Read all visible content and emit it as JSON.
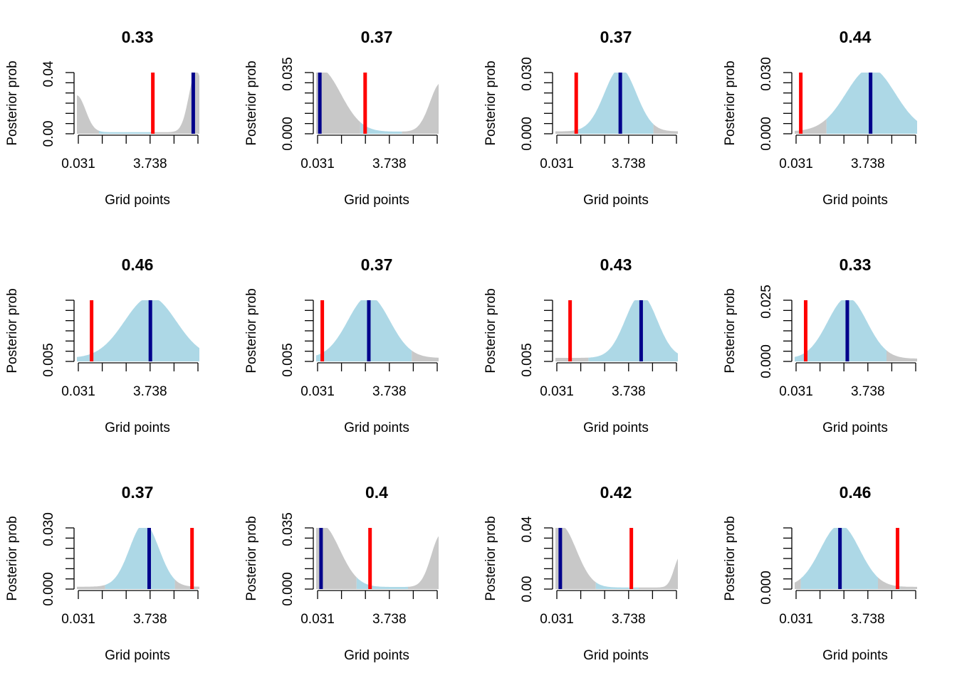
{
  "colors": {
    "density_fill": "#ADD8E6",
    "tail_fill": "#C8C8C8",
    "truth_line": "#FF0000",
    "estimate_line": "#00008B",
    "axis": "#000000"
  },
  "chart_data": [
    {
      "type": "area",
      "title": "0.33",
      "xlabel": "Grid points",
      "ylabel": "Posterior prob",
      "x_tick_labels": [
        "0.031",
        "3.738"
      ],
      "y_tick_labels": [
        "0.00",
        "0.04"
      ],
      "ylim": [
        0,
        0.045
      ],
      "shape": "bimodal",
      "centers": [
        0.0,
        0.975
      ],
      "widths": [
        0.07,
        0.06
      ],
      "amps": [
        0.027,
        0.045
      ],
      "baseline": 0.0012,
      "interval": [
        0.18,
        0.62
      ],
      "red_line": 0.62,
      "blue_line": 0.95
    },
    {
      "type": "area",
      "title": "0.37",
      "xlabel": "Grid points",
      "ylabel": "Posterior prob",
      "x_tick_labels": [
        "0.031",
        "3.738"
      ],
      "y_tick_labels": [
        "0.000",
        "0.035"
      ],
      "ylim": [
        0,
        0.035
      ],
      "shape": "bimodal",
      "centers": [
        0.03,
        1.02
      ],
      "widths": [
        0.17,
        0.09
      ],
      "amps": [
        0.036,
        0.028
      ],
      "baseline": 0.0012,
      "interval": [
        0.36,
        0.7
      ],
      "red_line": 0.4,
      "blue_line": 0.03
    },
    {
      "type": "area",
      "title": "0.37",
      "xlabel": "Grid points",
      "ylabel": "Posterior prob",
      "x_tick_labels": [
        "0.031",
        "3.738"
      ],
      "y_tick_labels": [
        "0.000",
        "0.030"
      ],
      "ylim": [
        0,
        0.031
      ],
      "shape": "single",
      "centers": [
        0.53
      ],
      "widths": [
        0.13
      ],
      "amps": [
        0.032
      ],
      "baseline": 0.0012,
      "interval": [
        0.18,
        0.8
      ],
      "red_line": 0.17,
      "blue_line": 0.53
    },
    {
      "type": "area",
      "title": "0.44",
      "xlabel": "Grid points",
      "ylabel": "Posterior prob",
      "x_tick_labels": [
        "0.031",
        "3.738"
      ],
      "y_tick_labels": [
        "0.000",
        "0.030"
      ],
      "ylim": [
        0,
        0.031
      ],
      "shape": "single",
      "centers": [
        0.62
      ],
      "widths": [
        0.2
      ],
      "amps": [
        0.032
      ],
      "baseline": 0.0012,
      "interval": [
        0.26,
        1.0
      ],
      "red_line": 0.05,
      "blue_line": 0.62
    },
    {
      "type": "area",
      "title": "0.46",
      "xlabel": "Grid points",
      "ylabel": "Posterior prob",
      "x_tick_labels": [
        "0.031",
        "3.738"
      ],
      "y_tick_labels": [
        "0.005"
      ],
      "ylim": [
        0,
        0.0145
      ],
      "shape": "single",
      "centers": [
        0.6
      ],
      "widths": [
        0.21
      ],
      "amps": [
        0.0145
      ],
      "baseline": 0.0008,
      "interval": [
        0.0,
        1.0
      ],
      "red_line": 0.12,
      "blue_line": 0.6
    },
    {
      "type": "area",
      "title": "0.37",
      "xlabel": "Grid points",
      "ylabel": "Posterior prob",
      "x_tick_labels": [
        "0.031",
        "3.738"
      ],
      "y_tick_labels": [
        "0.005"
      ],
      "ylim": [
        0,
        0.014
      ],
      "shape": "single",
      "centers": [
        0.43
      ],
      "widths": [
        0.17
      ],
      "amps": [
        0.0142
      ],
      "baseline": 0.0008,
      "interval": [
        0.0,
        0.78
      ],
      "red_line": 0.05,
      "blue_line": 0.43
    },
    {
      "type": "area",
      "title": "0.43",
      "xlabel": "Grid points",
      "ylabel": "Posterior prob",
      "x_tick_labels": [
        "0.031",
        "3.738"
      ],
      "y_tick_labels": [
        "0.005"
      ],
      "ylim": [
        0,
        0.0138
      ],
      "shape": "single",
      "centers": [
        0.7
      ],
      "widths": [
        0.13
      ],
      "amps": [
        0.0142
      ],
      "baseline": 0.0008,
      "interval": [
        0.27,
        1.0
      ],
      "red_line": 0.12,
      "blue_line": 0.7
    },
    {
      "type": "area",
      "title": "0.33",
      "xlabel": "Grid points",
      "ylabel": "Posterior prob",
      "x_tick_labels": [
        "0.031",
        "3.738"
      ],
      "y_tick_labels": [
        "0.000",
        "0.025"
      ],
      "ylim": [
        0,
        0.0265
      ],
      "shape": "single",
      "centers": [
        0.43
      ],
      "widths": [
        0.16
      ],
      "amps": [
        0.0265
      ],
      "baseline": 0.0012,
      "interval": [
        0.0,
        0.75
      ],
      "red_line": 0.09,
      "blue_line": 0.43
    },
    {
      "type": "area",
      "title": "0.37",
      "xlabel": "Grid points",
      "ylabel": "Posterior prob",
      "x_tick_labels": [
        "0.031",
        "3.738"
      ],
      "y_tick_labels": [
        "0.000",
        "0.030"
      ],
      "ylim": [
        0,
        0.031
      ],
      "shape": "single",
      "centers": [
        0.55
      ],
      "widths": [
        0.12
      ],
      "amps": [
        0.032
      ],
      "baseline": 0.0012,
      "interval": [
        0.23,
        0.8
      ],
      "red_line": 0.94,
      "blue_line": 0.59
    },
    {
      "type": "area",
      "title": "0.4",
      "xlabel": "Grid points",
      "ylabel": "Posterior prob",
      "x_tick_labels": [
        "0.031",
        "3.738"
      ],
      "y_tick_labels": [
        "0.000",
        "0.035"
      ],
      "ylim": [
        0,
        0.035
      ],
      "shape": "bimodal",
      "centers": [
        0.04,
        1.02
      ],
      "widths": [
        0.15,
        0.08
      ],
      "amps": [
        0.036,
        0.03
      ],
      "baseline": 0.0012,
      "interval": [
        0.33,
        0.75
      ],
      "red_line": 0.44,
      "blue_line": 0.04
    },
    {
      "type": "area",
      "title": "0.42",
      "xlabel": "Grid points",
      "ylabel": "Posterior prob",
      "x_tick_labels": [
        "0.031",
        "3.738"
      ],
      "y_tick_labels": [
        "0.00",
        "0.04"
      ],
      "ylim": [
        0,
        0.045
      ],
      "shape": "bimodal",
      "centers": [
        0.04,
        1.02
      ],
      "widths": [
        0.13,
        0.05
      ],
      "amps": [
        0.046,
        0.023
      ],
      "baseline": 0.0012,
      "interval": [
        0.33,
        0.68
      ],
      "red_line": 0.62,
      "blue_line": 0.04
    },
    {
      "type": "area",
      "title": "0.46",
      "xlabel": "Grid points",
      "ylabel": "Posterior prob",
      "x_tick_labels": [
        "0.031",
        "3.738"
      ],
      "y_tick_labels": [
        "0.000"
      ],
      "ylim": [
        0,
        0.0335
      ],
      "shape": "single",
      "centers": [
        0.37
      ],
      "widths": [
        0.16
      ],
      "amps": [
        0.034
      ],
      "baseline": 0.0012,
      "interval": [
        0.05,
        0.68
      ],
      "red_line": 0.84,
      "blue_line": 0.37
    }
  ]
}
